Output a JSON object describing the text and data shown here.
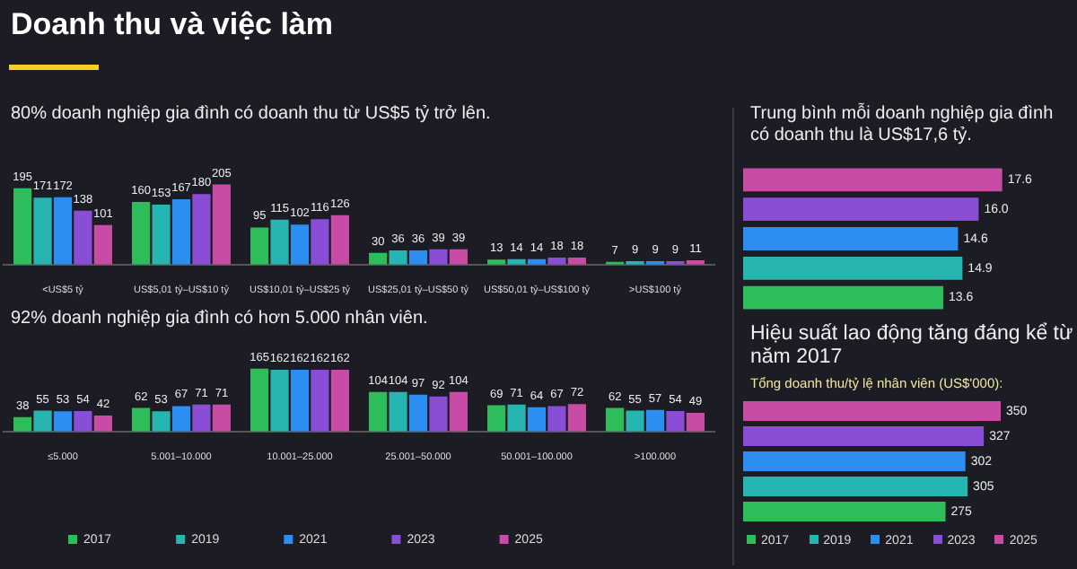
{
  "chart_data": [
    {
      "type": "bar",
      "title": "Doanh thu và việc làm",
      "subtitle": "80% doanh nghiệp gia đình có doanh thu từ US$5 tỷ trở lên.",
      "categories": [
        "<US$5 tỷ",
        "US$5,01 tỷ–US$10 tỷ",
        "US$10,01 tỷ–US$25 tỷ",
        "US$25,01 tỷ–US$50 tỷ",
        "US$50,01 tỷ–US$100 tỷ",
        ">US$100 tỷ"
      ],
      "series": [
        {
          "name": "2017",
          "color": "#2dbd5a",
          "values": [
            195,
            160,
            95,
            30,
            13,
            7
          ]
        },
        {
          "name": "2019",
          "color": "#26b5b0",
          "values": [
            171,
            153,
            115,
            36,
            14,
            9
          ]
        },
        {
          "name": "2021",
          "color": "#2b8ef0",
          "values": [
            172,
            167,
            102,
            36,
            14,
            9
          ]
        },
        {
          "name": "2023",
          "color": "#8a4ed6",
          "values": [
            138,
            180,
            116,
            39,
            18,
            9
          ]
        },
        {
          "name": "2025",
          "color": "#c84ba6",
          "values": [
            101,
            205,
            126,
            39,
            18,
            11
          ]
        }
      ],
      "data_labels": true,
      "tick_labels": "x"
    },
    {
      "type": "bar",
      "subtitle": "92% doanh nghiệp gia đình có hơn 5.000 nhân viên.",
      "categories": [
        "≤5.000",
        "5.001–10.000",
        "10.001–25.000",
        "25.001–50.000",
        "50.001–100.000",
        ">100.000"
      ],
      "series": [
        {
          "name": "2017",
          "color": "#2dbd5a",
          "values": [
            38,
            62,
            165,
            104,
            69,
            62
          ]
        },
        {
          "name": "2019",
          "color": "#26b5b0",
          "values": [
            55,
            53,
            162,
            104,
            71,
            55
          ]
        },
        {
          "name": "2021",
          "color": "#2b8ef0",
          "values": [
            53,
            67,
            162,
            97,
            64,
            57
          ]
        },
        {
          "name": "2023",
          "color": "#8a4ed6",
          "values": [
            54,
            71,
            162,
            92,
            67,
            54
          ]
        },
        {
          "name": "2025",
          "color": "#c84ba6",
          "values": [
            42,
            71,
            162,
            104,
            72,
            49
          ]
        }
      ],
      "data_labels": true,
      "tick_labels": "x",
      "legend": "bottom left"
    },
    {
      "type": "bar",
      "orientation": "horizontal",
      "title": "Trung bình mỗi doanh nghiệp gia đình có doanh thu là US$17,6 tỷ.",
      "categories": [
        null,
        null,
        null,
        null,
        null
      ],
      "values": [
        17.6,
        16.0,
        14.6,
        14.9,
        13.6
      ],
      "value_labels": [
        "17.6",
        "16.0",
        "14.6",
        "14.9",
        "13.6"
      ],
      "colors": [
        "#c84ba6",
        "#8a4ed6",
        "#2b8ef0",
        "#26b5b0",
        "#2dbd5a"
      ],
      "tick_labels": false
    },
    {
      "type": "bar",
      "orientation": "horizontal",
      "title": "Hiệu suất lao động tăng đáng kể từ năm 2017",
      "subtitle": "Tổng doanh thu/tỷ lệ nhân viên (US$'000):",
      "categories": [
        null,
        null,
        null,
        null,
        null
      ],
      "values": [
        350,
        327,
        302,
        305,
        275
      ],
      "colors": [
        "#c84ba6",
        "#8a4ed6",
        "#2b8ef0",
        "#26b5b0",
        "#2dbd5a"
      ],
      "data_labels": true,
      "tick_labels": false
    }
  ]
}
